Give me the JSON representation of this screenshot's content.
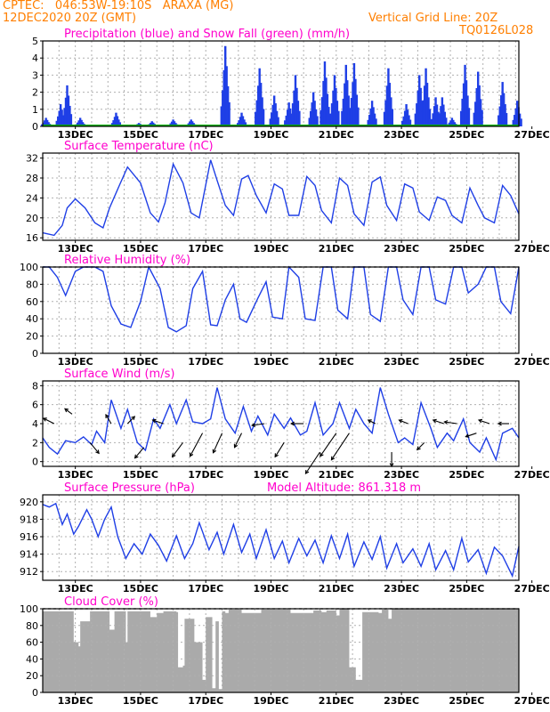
{
  "header": {
    "line1": "CPTEC:   046:53W-19:10S   ARAXA (MG)",
    "line2": "12DEC2020 20Z (GMT)",
    "grid_note": "Vertical Grid Line: 20Z",
    "model_code": "TQ0126L028"
  },
  "colors": {
    "header": "#ff7f00",
    "title": "#ff00cc",
    "series": "#1f3fe6",
    "snow": "#00b000",
    "cloud": "#aaaaaa",
    "grid": "#b0b0b0"
  },
  "x_labels": [
    "13DEC",
    "15DEC",
    "17DEC",
    "19DEC",
    "21DEC",
    "23DEC",
    "25DEC",
    "27DEC"
  ],
  "chart_data": [
    {
      "id": "precip",
      "type": "bar",
      "title": "Precipitation (blue) and Snow Fall (green) (mm/h)",
      "ylim": [
        0,
        5
      ],
      "yticks": [
        0,
        1,
        2,
        3,
        4,
        5
      ],
      "x_range": [
        0,
        14.6
      ],
      "peaks": [
        {
          "x": 0.1,
          "value": 0.5
        },
        {
          "x": 0.55,
          "value": 1.3
        },
        {
          "x": 0.75,
          "value": 2.4
        },
        {
          "x": 1.15,
          "value": 0.5
        },
        {
          "x": 2.25,
          "value": 0.8
        },
        {
          "x": 2.95,
          "value": 0.2
        },
        {
          "x": 3.35,
          "value": 0.3
        },
        {
          "x": 4.0,
          "value": 0.4
        },
        {
          "x": 4.55,
          "value": 0.4
        },
        {
          "x": 5.6,
          "value": 4.7
        },
        {
          "x": 6.1,
          "value": 0.8
        },
        {
          "x": 6.65,
          "value": 3.4
        },
        {
          "x": 7.1,
          "value": 1.8
        },
        {
          "x": 7.55,
          "value": 1.4
        },
        {
          "x": 7.75,
          "value": 3.0
        },
        {
          "x": 8.3,
          "value": 2.0
        },
        {
          "x": 8.65,
          "value": 3.8
        },
        {
          "x": 8.95,
          "value": 3.0
        },
        {
          "x": 9.3,
          "value": 3.6
        },
        {
          "x": 9.55,
          "value": 3.7
        },
        {
          "x": 10.1,
          "value": 1.5
        },
        {
          "x": 10.6,
          "value": 3.4
        },
        {
          "x": 11.15,
          "value": 1.3
        },
        {
          "x": 11.55,
          "value": 3.0
        },
        {
          "x": 11.75,
          "value": 3.4
        },
        {
          "x": 12.05,
          "value": 1.7
        },
        {
          "x": 12.25,
          "value": 1.7
        },
        {
          "x": 12.55,
          "value": 0.5
        },
        {
          "x": 12.95,
          "value": 3.6
        },
        {
          "x": 13.35,
          "value": 3.2
        },
        {
          "x": 14.1,
          "value": 2.6
        },
        {
          "x": 14.55,
          "value": 1.5
        }
      ],
      "snow_values": 0
    },
    {
      "id": "temp",
      "type": "line",
      "title": "Surface Temperature (nC)",
      "ylim": [
        15.5,
        33
      ],
      "yticks": [
        16,
        20,
        24,
        28,
        32
      ],
      "x": [
        0,
        0.35,
        0.6,
        0.75,
        1.0,
        1.3,
        1.6,
        1.85,
        2.05,
        2.35,
        2.6,
        3.0,
        3.3,
        3.55,
        3.75,
        4.0,
        4.3,
        4.55,
        4.8,
        5.15,
        5.35,
        5.6,
        5.85,
        6.1,
        6.3,
        6.55,
        6.85,
        7.1,
        7.35,
        7.55,
        7.85,
        8.1,
        8.35,
        8.55,
        8.85,
        9.1,
        9.35,
        9.55,
        9.85,
        10.1,
        10.35,
        10.55,
        10.85,
        11.1,
        11.35,
        11.55,
        11.85,
        12.1,
        12.35,
        12.55,
        12.85,
        13.1,
        13.35,
        13.55,
        13.85,
        14.1,
        14.35,
        14.6
      ],
      "y": [
        17,
        16.5,
        18.5,
        22,
        23.8,
        22.0,
        19.0,
        18.0,
        22.0,
        26.5,
        30.2,
        27.0,
        21.0,
        19.2,
        23.0,
        30.8,
        27.0,
        21.0,
        20.0,
        31.6,
        27.5,
        22.5,
        20.5,
        27.8,
        28.5,
        24.5,
        21.0,
        26.8,
        25.8,
        20.5,
        20.5,
        28.3,
        26.5,
        21.5,
        19.0,
        28.0,
        26.5,
        20.8,
        18.5,
        27.2,
        28.2,
        22.5,
        19.5,
        26.8,
        26.0,
        21.2,
        19.5,
        24.2,
        23.5,
        20.5,
        19.0,
        26.0,
        22.5,
        20.0,
        19.0,
        26.5,
        24.5,
        20.8
      ]
    },
    {
      "id": "rh",
      "type": "line",
      "title": "Relative Humidity (%)",
      "ylim": [
        0,
        100
      ],
      "yticks": [
        0,
        20,
        40,
        60,
        80,
        100
      ],
      "x": [
        0,
        0.2,
        0.45,
        0.7,
        1.0,
        1.25,
        1.6,
        1.85,
        2.1,
        2.4,
        2.7,
        3.0,
        3.25,
        3.6,
        3.85,
        4.1,
        4.4,
        4.6,
        4.9,
        5.15,
        5.35,
        5.6,
        5.85,
        6.05,
        6.25,
        6.6,
        6.85,
        7.05,
        7.35,
        7.55,
        7.85,
        8.05,
        8.35,
        8.6,
        8.85,
        9.05,
        9.35,
        9.55,
        9.85,
        10.05,
        10.35,
        10.6,
        10.85,
        11.05,
        11.35,
        11.6,
        11.85,
        12.05,
        12.35,
        12.6,
        12.85,
        13.05,
        13.35,
        13.6,
        13.85,
        14.05,
        14.35,
        14.6
      ],
      "y": [
        100,
        100,
        88,
        67,
        95,
        100,
        100,
        95,
        55,
        34,
        30,
        60,
        100,
        75,
        30,
        25,
        32,
        75,
        95,
        33,
        32,
        62,
        80,
        40,
        36,
        64,
        83,
        42,
        40,
        100,
        88,
        40,
        38,
        100,
        100,
        50,
        40,
        100,
        100,
        45,
        37,
        100,
        100,
        62,
        45,
        100,
        100,
        62,
        57,
        100,
        100,
        70,
        80,
        100,
        100,
        60,
        46,
        100
      ]
    },
    {
      "id": "wind",
      "type": "line",
      "title": "Surface Wind (m/s)",
      "ylim": [
        -0.5,
        8.5
      ],
      "yticks": [
        0,
        2,
        4,
        6,
        8
      ],
      "x": [
        0,
        0.2,
        0.45,
        0.7,
        1.0,
        1.25,
        1.5,
        1.65,
        1.9,
        2.1,
        2.4,
        2.6,
        2.9,
        3.15,
        3.4,
        3.6,
        3.9,
        4.1,
        4.4,
        4.6,
        4.9,
        5.15,
        5.35,
        5.6,
        5.9,
        6.15,
        6.4,
        6.6,
        6.9,
        7.1,
        7.4,
        7.6,
        7.9,
        8.1,
        8.35,
        8.6,
        8.9,
        9.1,
        9.4,
        9.6,
        9.85,
        10.1,
        10.35,
        10.6,
        10.9,
        11.1,
        11.35,
        11.6,
        11.9,
        12.1,
        12.4,
        12.6,
        12.9,
        13.1,
        13.4,
        13.6,
        13.9,
        14.1,
        14.4,
        14.6
      ],
      "y": [
        2.5,
        1.5,
        0.8,
        2.2,
        2.0,
        2.6,
        1.8,
        3.2,
        2.0,
        6.5,
        3.5,
        5.5,
        2.0,
        1.2,
        4.5,
        3.5,
        6.0,
        4.0,
        6.5,
        4.2,
        4.0,
        4.5,
        7.8,
        4.5,
        3.0,
        5.8,
        3.2,
        4.8,
        2.8,
        5.0,
        3.5,
        4.6,
        2.8,
        3.2,
        6.2,
        2.8,
        4.0,
        6.2,
        3.5,
        5.5,
        4.0,
        3.0,
        7.8,
        5.0,
        2.0,
        2.5,
        1.8,
        6.2,
        3.5,
        1.5,
        3.0,
        2.2,
        4.5,
        2.0,
        1.0,
        2.5,
        0.2,
        3.0,
        3.5,
        2.5
      ]
    },
    {
      "id": "pressure",
      "type": "line",
      "title": "Surface Pressure (hPa)",
      "annotation": "Model Altitude: 861.318 m",
      "ylim": [
        911,
        920.8
      ],
      "yticks": [
        912,
        914,
        916,
        918,
        920
      ],
      "x": [
        0,
        0.2,
        0.4,
        0.6,
        0.75,
        0.95,
        1.1,
        1.35,
        1.5,
        1.7,
        1.9,
        2.1,
        2.3,
        2.55,
        2.8,
        3.05,
        3.3,
        3.55,
        3.8,
        4.1,
        4.35,
        4.6,
        4.8,
        5.1,
        5.35,
        5.55,
        5.85,
        6.1,
        6.35,
        6.55,
        6.85,
        7.1,
        7.35,
        7.55,
        7.85,
        8.1,
        8.35,
        8.6,
        8.85,
        9.1,
        9.35,
        9.55,
        9.85,
        10.1,
        10.35,
        10.55,
        10.85,
        11.05,
        11.35,
        11.6,
        11.85,
        12.05,
        12.35,
        12.6,
        12.85,
        13.05,
        13.35,
        13.6,
        13.85,
        14.1,
        14.4,
        14.6
      ],
      "y": [
        919.7,
        919.4,
        919.8,
        917.4,
        918.6,
        916.3,
        917.2,
        919.1,
        918.0,
        916.0,
        918.0,
        919.4,
        916.0,
        913.5,
        915.2,
        914.0,
        916.3,
        915.0,
        913.2,
        916.1,
        913.5,
        915.2,
        917.6,
        914.5,
        916.5,
        914.0,
        917.4,
        914.2,
        916.3,
        913.5,
        916.8,
        913.5,
        915.5,
        913.0,
        915.8,
        913.8,
        915.6,
        913.0,
        916.1,
        913.5,
        916.3,
        912.6,
        915.4,
        913.4,
        916.0,
        912.4,
        915.2,
        913.0,
        914.6,
        912.6,
        915.2,
        912.2,
        914.4,
        912.2,
        915.8,
        913.1,
        914.5,
        911.8,
        914.8,
        913.8,
        911.5,
        914.9
      ]
    },
    {
      "id": "cloud",
      "type": "area",
      "title": "Cloud Cover (%)",
      "ylim": [
        0,
        100
      ],
      "yticks": [
        0,
        20,
        40,
        60,
        80,
        100
      ],
      "x": [
        0,
        0.9,
        0.95,
        1.1,
        1.15,
        1.4,
        1.45,
        2.0,
        2.05,
        2.2,
        2.3,
        2.55,
        2.6,
        3.1,
        3.3,
        3.5,
        3.7,
        4.1,
        4.15,
        4.3,
        4.35,
        4.6,
        4.65,
        4.9,
        5.0,
        5.2,
        5.3,
        5.4,
        5.5,
        5.6,
        5.7,
        6.05,
        6.1,
        6.6,
        6.7,
        7.5,
        7.6,
        8.2,
        8.3,
        8.55,
        8.7,
        9.0,
        9.1,
        9.3,
        9.4,
        9.6,
        9.8,
        10.3,
        10.4,
        10.6,
        10.7,
        14.6
      ],
      "y": [
        97,
        97,
        60,
        55,
        85,
        85,
        97,
        97,
        75,
        97,
        97,
        60,
        97,
        97,
        90,
        95,
        97,
        96,
        30,
        32,
        88,
        88,
        60,
        15,
        90,
        5,
        85,
        4,
        97,
        95,
        99,
        99,
        95,
        95,
        99,
        99,
        95,
        95,
        98,
        96,
        98,
        92,
        100,
        100,
        30,
        15,
        96,
        95,
        99,
        88,
        100,
        100
      ]
    }
  ]
}
